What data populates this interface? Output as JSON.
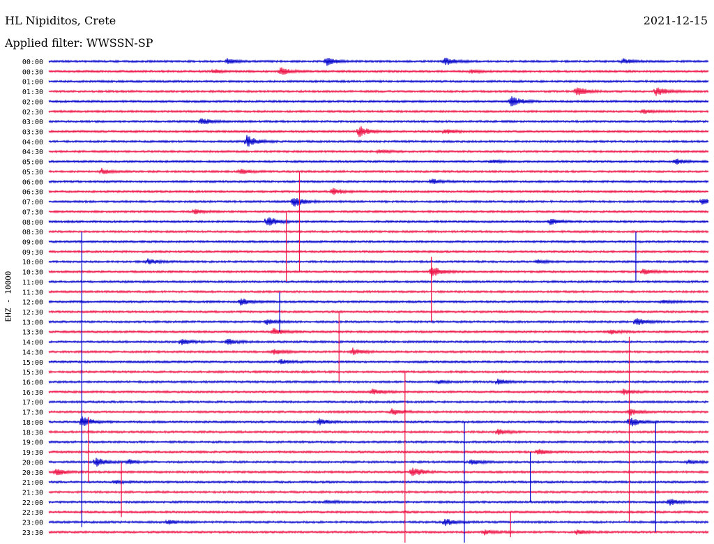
{
  "header": {
    "station": "HL Nipiditos, Crete",
    "filter": "Applied filter: WWSSN-SP",
    "date": "2021-12-15"
  },
  "colors": {
    "blue": "#0000cc",
    "red": "#ee1144"
  },
  "chart_data": {
    "type": "line",
    "ylabel": "EHZ - 10000",
    "row_labels": [
      "00:00",
      "00:30",
      "01:00",
      "01:30",
      "02:00",
      "02:30",
      "03:00",
      "03:30",
      "04:00",
      "04:30",
      "05:00",
      "05:30",
      "06:00",
      "06:30",
      "07:00",
      "07:30",
      "08:00",
      "08:30",
      "09:00",
      "09:30",
      "10:00",
      "10:30",
      "11:00",
      "11:30",
      "12:00",
      "12:30",
      "13:00",
      "13:30",
      "14:00",
      "14:30",
      "15:00",
      "15:30",
      "16:00",
      "16:30",
      "17:00",
      "17:30",
      "18:00",
      "18:30",
      "19:00",
      "19:30",
      "20:00",
      "20:30",
      "21:00",
      "21:30",
      "22:00",
      "22:30",
      "23:00",
      "23:30"
    ],
    "row_colors": [
      "blue",
      "red"
    ],
    "events": [
      {
        "row": 0,
        "t": 0.27,
        "amp": 0.4
      },
      {
        "row": 0,
        "t": 0.42,
        "amp": 0.7
      },
      {
        "row": 0,
        "t": 0.6,
        "amp": 0.7
      },
      {
        "row": 0,
        "t": 0.87,
        "amp": 0.4
      },
      {
        "row": 1,
        "t": 0.25,
        "amp": 0.3
      },
      {
        "row": 1,
        "t": 0.35,
        "amp": 0.7
      },
      {
        "row": 1,
        "t": 0.64,
        "amp": 0.25
      },
      {
        "row": 3,
        "t": 0.8,
        "amp": 0.8
      },
      {
        "row": 3,
        "t": 0.92,
        "amp": 0.9
      },
      {
        "row": 4,
        "t": 0.7,
        "amp": 1.0
      },
      {
        "row": 5,
        "t": 0.9,
        "amp": 0.4
      },
      {
        "row": 6,
        "t": 0.23,
        "amp": 0.6
      },
      {
        "row": 7,
        "t": 0.47,
        "amp": 1.0
      },
      {
        "row": 7,
        "t": 0.6,
        "amp": 0.4
      },
      {
        "row": 8,
        "t": 0.3,
        "amp": 1.0
      },
      {
        "row": 9,
        "t": 0.5,
        "amp": 0.3
      },
      {
        "row": 10,
        "t": 0.67,
        "amp": 0.3
      },
      {
        "row": 10,
        "t": 0.95,
        "amp": 0.5
      },
      {
        "row": 11,
        "t": 0.08,
        "amp": 0.5
      },
      {
        "row": 11,
        "t": 0.29,
        "amp": 0.4
      },
      {
        "row": 12,
        "t": 0.58,
        "amp": 0.4
      },
      {
        "row": 13,
        "t": 0.43,
        "amp": 0.6
      },
      {
        "row": 14,
        "t": 0.37,
        "amp": 1.0
      },
      {
        "row": 14,
        "t": 0.99,
        "amp": 0.5
      },
      {
        "row": 15,
        "t": 0.22,
        "amp": 0.4
      },
      {
        "row": 16,
        "t": 0.33,
        "amp": 1.0
      },
      {
        "row": 16,
        "t": 0.76,
        "amp": 0.5
      },
      {
        "row": 20,
        "t": 0.15,
        "amp": 0.5
      },
      {
        "row": 20,
        "t": 0.74,
        "amp": 0.3
      },
      {
        "row": 21,
        "t": 0.58,
        "amp": 1.0
      },
      {
        "row": 21,
        "t": 0.9,
        "amp": 0.5
      },
      {
        "row": 24,
        "t": 0.29,
        "amp": 0.6
      },
      {
        "row": 24,
        "t": 0.93,
        "amp": 0.3
      },
      {
        "row": 26,
        "t": 0.33,
        "amp": 0.5
      },
      {
        "row": 26,
        "t": 0.89,
        "amp": 0.6
      },
      {
        "row": 27,
        "t": 0.34,
        "amp": 0.6
      },
      {
        "row": 27,
        "t": 0.85,
        "amp": 0.4
      },
      {
        "row": 28,
        "t": 0.2,
        "amp": 0.5
      },
      {
        "row": 28,
        "t": 0.27,
        "amp": 0.5
      },
      {
        "row": 29,
        "t": 0.34,
        "amp": 0.5
      },
      {
        "row": 29,
        "t": 0.46,
        "amp": 0.6
      },
      {
        "row": 30,
        "t": 0.35,
        "amp": 0.4
      },
      {
        "row": 32,
        "t": 0.59,
        "amp": 0.3
      },
      {
        "row": 32,
        "t": 0.68,
        "amp": 0.5
      },
      {
        "row": 33,
        "t": 0.49,
        "amp": 0.5
      },
      {
        "row": 33,
        "t": 0.87,
        "amp": 0.5
      },
      {
        "row": 35,
        "t": 0.52,
        "amp": 0.5
      },
      {
        "row": 35,
        "t": 0.88,
        "amp": 0.6
      },
      {
        "row": 36,
        "t": 0.05,
        "amp": 1.0
      },
      {
        "row": 36,
        "t": 0.41,
        "amp": 0.5
      },
      {
        "row": 36,
        "t": 0.88,
        "amp": 0.9
      },
      {
        "row": 37,
        "t": 0.68,
        "amp": 0.5
      },
      {
        "row": 39,
        "t": 0.74,
        "amp": 0.5
      },
      {
        "row": 40,
        "t": 0.07,
        "amp": 0.8
      },
      {
        "row": 40,
        "t": 0.12,
        "amp": 0.4
      },
      {
        "row": 40,
        "t": 0.64,
        "amp": 0.5
      },
      {
        "row": 40,
        "t": 0.97,
        "amp": 0.3
      },
      {
        "row": 41,
        "t": 0.01,
        "amp": 0.6
      },
      {
        "row": 41,
        "t": 0.55,
        "amp": 0.9
      },
      {
        "row": 42,
        "t": 0.1,
        "amp": 0.3
      },
      {
        "row": 44,
        "t": 0.42,
        "amp": 0.3
      },
      {
        "row": 44,
        "t": 0.94,
        "amp": 0.6
      },
      {
        "row": 46,
        "t": 0.18,
        "amp": 0.4
      },
      {
        "row": 46,
        "t": 0.6,
        "amp": 0.6
      },
      {
        "row": 47,
        "t": 0.66,
        "amp": 0.4
      },
      {
        "row": 47,
        "t": 0.8,
        "amp": 0.4
      }
    ],
    "spikes": [
      {
        "row": 15,
        "t": 0.36,
        "up": 0.0,
        "down": 7.0
      },
      {
        "row": 13,
        "t": 0.38,
        "up": 2.0,
        "down": 8.0
      },
      {
        "row": 21,
        "t": 0.58,
        "up": 1.5,
        "down": 5.0
      },
      {
        "row": 25,
        "t": 0.44,
        "up": 0.0,
        "down": 7.0
      },
      {
        "row": 31,
        "t": 0.54,
        "up": 0.0,
        "down": 19.0
      },
      {
        "row": 36,
        "t": 0.63,
        "up": 0.0,
        "down": 13.0
      },
      {
        "row": 24,
        "t": 0.35,
        "up": 1.0,
        "down": 3.0
      },
      {
        "row": 22,
        "t": 0.89,
        "up": 5.0,
        "down": 0.0
      },
      {
        "row": 33,
        "t": 0.88,
        "up": 5.5,
        "down": 13.0
      },
      {
        "row": 36,
        "t": 0.05,
        "up": 19.0,
        "down": 10.5
      },
      {
        "row": 37,
        "t": 0.06,
        "up": 1.5,
        "down": 5.0
      },
      {
        "row": 41,
        "t": 0.11,
        "up": 1.0,
        "down": 4.5
      },
      {
        "row": 36,
        "t": 0.92,
        "up": 0.0,
        "down": 11.0
      },
      {
        "row": 42,
        "t": 0.73,
        "up": 3.0,
        "down": 2.0
      },
      {
        "row": 45,
        "t": 0.7,
        "up": 0.0,
        "down": 2.5
      }
    ]
  }
}
